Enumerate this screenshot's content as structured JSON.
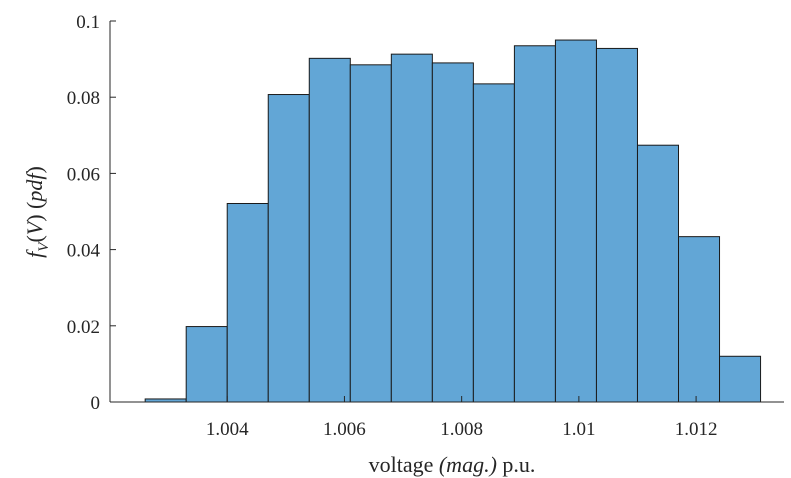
{
  "chart_data": {
    "type": "bar",
    "title": "",
    "xlabel_prefix": "voltage ",
    "xlabel_italic": "(mag.)",
    "xlabel_suffix": " p.u.",
    "ylabel_parts": [
      "f",
      "V",
      "(",
      "V",
      ")",
      " (",
      "pdf",
      ")"
    ],
    "bin_edges": [
      1.0026,
      1.0033,
      1.004,
      1.0047,
      1.0054,
      1.0061,
      1.0068,
      1.0075,
      1.0082,
      1.0089,
      1.0096,
      1.0103,
      1.011,
      1.0117,
      1.0124,
      1.0131
    ],
    "values": [
      0.0008,
      0.0198,
      0.0521,
      0.0807,
      0.0902,
      0.0885,
      0.0913,
      0.089,
      0.0835,
      0.0935,
      0.095,
      0.0928,
      0.0674,
      0.0434,
      0.012
    ],
    "xlim": [
      1.002,
      1.0135
    ],
    "ylim": [
      0,
      0.1
    ],
    "xticks": [
      1.004,
      1.006,
      1.008,
      1.01,
      1.012
    ],
    "xtick_labels": [
      "1.004",
      "1.006",
      "1.008",
      "1.01",
      "1.012"
    ],
    "yticks": [
      0,
      0.02,
      0.04,
      0.06,
      0.08,
      0.1
    ],
    "ytick_labels": [
      "0",
      "0.02",
      "0.04",
      "0.06",
      "0.08",
      "0.1"
    ],
    "bar_color": "#62a6d6",
    "edge_color": "#1a1a1a",
    "grid": false,
    "legend": "none"
  }
}
